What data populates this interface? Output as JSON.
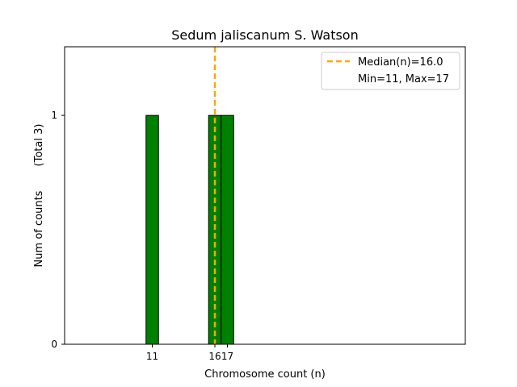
{
  "chart_data": {
    "type": "bar",
    "title": "Sedum jaliscanum S. Watson",
    "xlabel": "Chromosome count (n)",
    "ylabel": "Num of counts",
    "ylabel_total": "(Total 3)",
    "x": [
      11,
      16,
      17
    ],
    "values": [
      1,
      1,
      1
    ],
    "xlim": [
      4,
      36
    ],
    "ylim": [
      0,
      1.3
    ],
    "xticks": [
      11,
      16,
      17
    ],
    "yticks": [
      0,
      1
    ],
    "median": 16.0,
    "legend": {
      "placement": "top-right",
      "median_label": "Median(n)=16.0",
      "range_label": "Min=11, Max=17"
    },
    "colors": {
      "bar": "#008000",
      "bar_edge": "#000000",
      "median_line": "#ffa500"
    }
  }
}
